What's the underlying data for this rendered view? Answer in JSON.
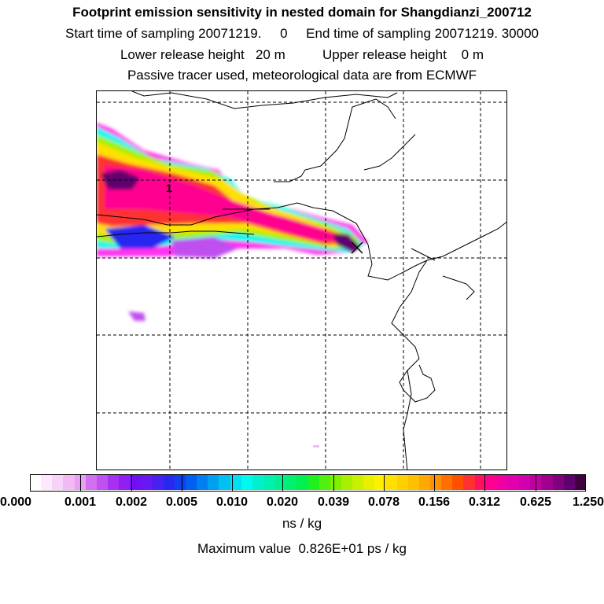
{
  "title": {
    "line1": "Footprint emission sensitivity in nested domain for Shangdianzi_200712",
    "line2": "Start time of sampling 20071219.     0     End time of sampling 20071219. 30000",
    "line3": "Lower release height   20 m          Upper release height    0 m",
    "line4": "Passive tracer used, meteorological data are from ECMWF"
  },
  "map": {
    "release_marker_label": "1"
  },
  "colorbar": {
    "tick_labels": [
      "0.000",
      "0.001",
      "0.002",
      "0.005",
      "0.010",
      "0.020",
      "0.039",
      "0.078",
      "0.156",
      "0.312",
      "0.625",
      "1.250"
    ],
    "colors": [
      "#ffffff",
      "#fde8fd",
      "#f8d2f8",
      "#f2baf2",
      "#e8a0f0",
      "#d070f0",
      "#c050f0",
      "#a830f0",
      "#9020f0",
      "#7010f0",
      "#6818f0",
      "#4820f0",
      "#2828f0",
      "#1040f0",
      "#0060f0",
      "#0080f0",
      "#00a0f0",
      "#00c0f0",
      "#00e0f0",
      "#00f8f0",
      "#00f0d0",
      "#00f0b0",
      "#00f090",
      "#00f070",
      "#00f050",
      "#20f020",
      "#50f010",
      "#80f000",
      "#a8f000",
      "#c8f000",
      "#e8f000",
      "#fff000",
      "#ffe000",
      "#ffd000",
      "#ffc000",
      "#ffa800",
      "#ff9000",
      "#ff7000",
      "#ff5000",
      "#ff3030",
      "#ff1060",
      "#ff0090",
      "#f000a0",
      "#e000b0",
      "#d000b0",
      "#c000a0",
      "#a00090",
      "#800080",
      "#600070",
      "#400040"
    ],
    "units": "ns / kg"
  },
  "footer": {
    "max_value": "Maximum value  0.826E+01 ps / kg"
  }
}
